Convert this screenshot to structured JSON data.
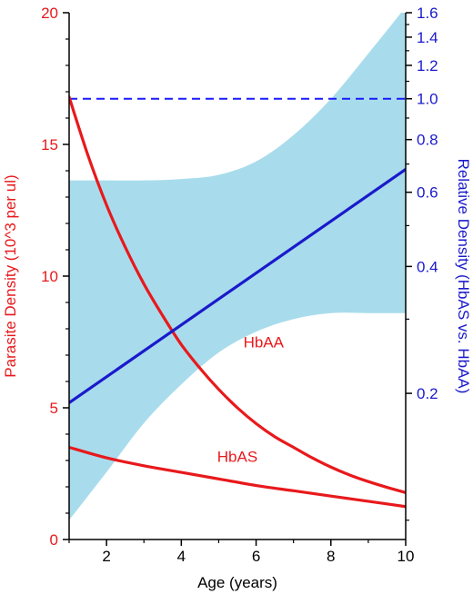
{
  "chart_data": {
    "type": "line",
    "xlabel": "Age (years)",
    "ylabel_left": "Parasite Density (10^3 per ul)",
    "ylabel_right": "Relative Density (HbAS vs. HbAA)",
    "x_range": [
      1,
      10
    ],
    "y_left_range": [
      0,
      20
    ],
    "y_right_scale": "log",
    "y_right_range": [
      0.09,
      1.6
    ],
    "x_ticks": [
      2,
      4,
      6,
      8,
      10
    ],
    "y_left_ticks": [
      0,
      5,
      10,
      15,
      20
    ],
    "y_right_ticks": [
      0.2,
      0.4,
      0.6,
      0.8,
      1.0,
      1.2,
      1.4,
      1.6
    ],
    "y_right_tick_labels": [
      "0.2",
      "0.4",
      "0.6",
      "0.8",
      "1.0",
      "1.2",
      "1.4",
      "1.6"
    ],
    "grid": false,
    "reference_line": {
      "axis": "right",
      "value": 1.0,
      "style": "dashed",
      "color": "#1a1aff"
    },
    "series": [
      {
        "name": "HbAA",
        "axis": "left",
        "color": "#e8191c",
        "x": [
          1,
          1.5,
          2,
          2.5,
          3,
          3.5,
          4,
          4.5,
          5,
          5.5,
          6,
          6.5,
          7,
          7.5,
          8,
          8.5,
          9,
          9.5,
          10
        ],
        "values": [
          16.8,
          14.6,
          12.7,
          11.1,
          9.7,
          8.5,
          7.4,
          6.5,
          5.7,
          5.0,
          4.4,
          3.9,
          3.5,
          3.1,
          2.75,
          2.45,
          2.2,
          1.98,
          1.78
        ]
      },
      {
        "name": "HbAS",
        "axis": "left",
        "color": "#e8191c",
        "x": [
          1,
          2,
          3,
          4,
          5,
          6,
          7,
          8,
          9,
          10
        ],
        "values": [
          3.5,
          3.1,
          2.8,
          2.55,
          2.3,
          2.05,
          1.85,
          1.65,
          1.45,
          1.25
        ]
      },
      {
        "name": "",
        "axis": "right",
        "color": "#1a1acc",
        "x": [
          1,
          10
        ],
        "values": [
          0.19,
          0.68
        ]
      }
    ],
    "confidence_band": {
      "axis": "right",
      "color": "#a8dcec",
      "x": [
        1,
        2,
        3,
        4,
        5,
        6,
        7,
        8,
        9,
        10
      ],
      "upper": [
        0.64,
        0.64,
        0.64,
        0.645,
        0.66,
        0.71,
        0.82,
        1.0,
        1.28,
        1.65
      ],
      "lower": [
        0.1,
        0.13,
        0.17,
        0.21,
        0.25,
        0.28,
        0.3,
        0.31,
        0.31,
        0.31
      ]
    }
  }
}
